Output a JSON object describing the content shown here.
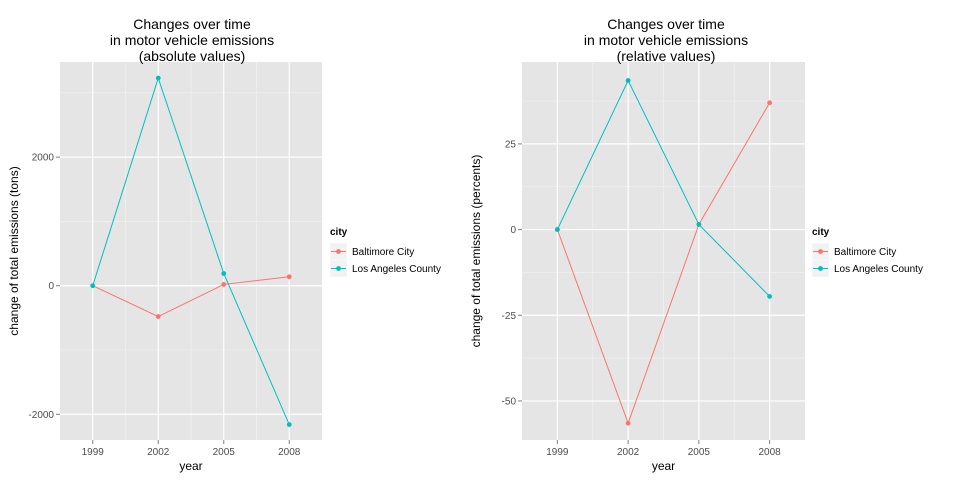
{
  "chart_data": [
    {
      "type": "line",
      "title": [
        "Changes over time",
        "in motor vehicle emissions",
        "(absolute values)"
      ],
      "xlabel": "year",
      "ylabel": "change of total emissions (tons)",
      "x": [
        1999,
        2002,
        2005,
        2008
      ],
      "x_tick_labels": [
        "1999",
        "2002",
        "2005",
        "2008"
      ],
      "y_ticks": [
        -2000,
        0,
        2000
      ],
      "y_tick_labels": [
        "-2000",
        "0",
        "2000"
      ],
      "ylim": [
        -2400,
        3480
      ],
      "grid": true,
      "legend": {
        "title": "city",
        "position": "right"
      },
      "series": [
        {
          "name": "Baltimore City",
          "color": "#F8766D",
          "values": [
            0,
            -480,
            20,
            140
          ]
        },
        {
          "name": "Los Angeles County",
          "color": "#00BFC4",
          "values": [
            0,
            3230,
            190,
            -2160
          ]
        }
      ]
    },
    {
      "type": "line",
      "title": [
        "Changes over time",
        "in motor vehicle emissions",
        "(relative values)"
      ],
      "xlabel": "year",
      "ylabel": "change of total emissions (percents)",
      "x": [
        1999,
        2002,
        2005,
        2008
      ],
      "x_tick_labels": [
        "1999",
        "2002",
        "2005",
        "2008"
      ],
      "y_ticks": [
        -50,
        -25,
        0,
        25
      ],
      "y_tick_labels": [
        "-50",
        "-25",
        "0",
        "25"
      ],
      "ylim": [
        -61.4,
        48.9
      ],
      "grid": true,
      "legend": {
        "title": "city",
        "position": "right"
      },
      "series": [
        {
          "name": "Baltimore City",
          "color": "#F8766D",
          "values": [
            0,
            -56.5,
            1.5,
            37
          ]
        },
        {
          "name": "Los Angeles County",
          "color": "#00BFC4",
          "values": [
            0,
            43.5,
            1.5,
            -19.5
          ]
        }
      ]
    }
  ]
}
